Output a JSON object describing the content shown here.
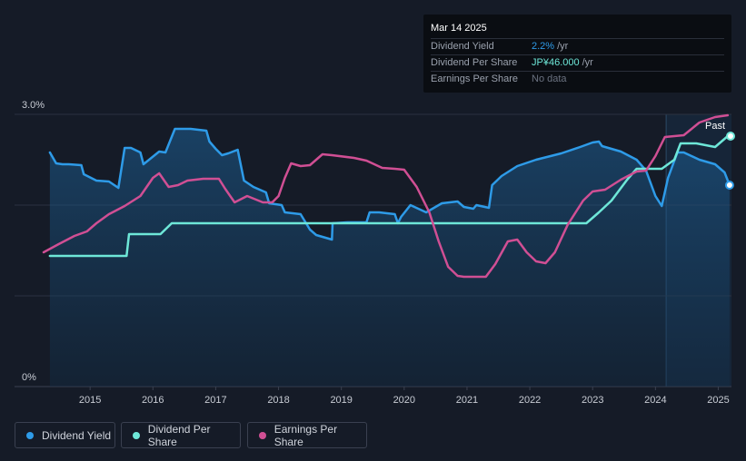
{
  "tooltip": {
    "date": "Mar 14 2025",
    "rows": [
      {
        "label": "Dividend Yield",
        "value": "2.2%",
        "unit": "/yr",
        "color": "#2e9be8"
      },
      {
        "label": "Dividend Per Share",
        "value": "JP¥46.000",
        "unit": "/yr",
        "color": "#6ee7d8"
      },
      {
        "label": "Earnings Per Share",
        "value": "No data",
        "unit": "",
        "color": "#6b7280"
      }
    ]
  },
  "past_label": "Past",
  "legend": [
    {
      "label": "Dividend Yield",
      "color": "#2e9be8"
    },
    {
      "label": "Dividend Per Share",
      "color": "#6ee7d8"
    },
    {
      "label": "Earnings Per Share",
      "color": "#d04f94"
    }
  ],
  "chart_data": {
    "type": "line",
    "y_tick_labels": [
      "3.0%",
      "0%"
    ],
    "x_tick_labels": [
      "2015",
      "2016",
      "2017",
      "2018",
      "2019",
      "2020",
      "2021",
      "2022",
      "2023",
      "2024",
      "2025"
    ],
    "xlim": [
      2014.26,
      2025.21
    ],
    "ylim": [
      0,
      3.0
    ],
    "past_start": 2024.17,
    "series": [
      {
        "name": "Dividend Yield",
        "color": "#2e9be8",
        "fill": true,
        "points": [
          [
            2014.36,
            2.58
          ],
          [
            2014.46,
            2.46
          ],
          [
            2014.56,
            2.45
          ],
          [
            2014.66,
            2.45
          ],
          [
            2014.86,
            2.44
          ],
          [
            2014.9,
            2.34
          ],
          [
            2015.1,
            2.27
          ],
          [
            2015.3,
            2.26
          ],
          [
            2015.45,
            2.19
          ],
          [
            2015.55,
            2.63
          ],
          [
            2015.65,
            2.63
          ],
          [
            2015.8,
            2.58
          ],
          [
            2015.85,
            2.45
          ],
          [
            2016.1,
            2.59
          ],
          [
            2016.2,
            2.58
          ],
          [
            2016.35,
            2.84
          ],
          [
            2016.6,
            2.84
          ],
          [
            2016.85,
            2.82
          ],
          [
            2016.9,
            2.7
          ],
          [
            2017.0,
            2.62
          ],
          [
            2017.1,
            2.55
          ],
          [
            2017.2,
            2.57
          ],
          [
            2017.35,
            2.61
          ],
          [
            2017.45,
            2.27
          ],
          [
            2017.6,
            2.2
          ],
          [
            2017.8,
            2.14
          ],
          [
            2017.85,
            2.02
          ],
          [
            2018.05,
            2.0
          ],
          [
            2018.1,
            1.92
          ],
          [
            2018.35,
            1.9
          ],
          [
            2018.5,
            1.73
          ],
          [
            2018.6,
            1.67
          ],
          [
            2018.85,
            1.62
          ],
          [
            2018.86,
            1.8
          ],
          [
            2019.1,
            1.81
          ],
          [
            2019.4,
            1.81
          ],
          [
            2019.45,
            1.92
          ],
          [
            2019.6,
            1.92
          ],
          [
            2019.85,
            1.9
          ],
          [
            2019.9,
            1.8
          ],
          [
            2019.95,
            1.87
          ],
          [
            2020.1,
            2.0
          ],
          [
            2020.35,
            1.92
          ],
          [
            2020.45,
            1.96
          ],
          [
            2020.6,
            2.02
          ],
          [
            2020.85,
            2.04
          ],
          [
            2020.95,
            1.98
          ],
          [
            2021.1,
            1.96
          ],
          [
            2021.15,
            2.0
          ],
          [
            2021.35,
            1.97
          ],
          [
            2021.4,
            2.22
          ],
          [
            2021.55,
            2.32
          ],
          [
            2021.8,
            2.43
          ],
          [
            2022.1,
            2.5
          ],
          [
            2022.5,
            2.57
          ],
          [
            2022.8,
            2.64
          ],
          [
            2023.0,
            2.69
          ],
          [
            2023.1,
            2.7
          ],
          [
            2023.15,
            2.65
          ],
          [
            2023.45,
            2.59
          ],
          [
            2023.7,
            2.5
          ],
          [
            2023.85,
            2.38
          ],
          [
            2024.0,
            2.1
          ],
          [
            2024.1,
            1.99
          ],
          [
            2024.2,
            2.3
          ],
          [
            2024.35,
            2.58
          ],
          [
            2024.45,
            2.58
          ],
          [
            2024.7,
            2.5
          ],
          [
            2024.95,
            2.45
          ],
          [
            2025.1,
            2.36
          ],
          [
            2025.18,
            2.22
          ]
        ]
      },
      {
        "name": "Dividend Per Share",
        "color": "#6ee7d8",
        "fill": false,
        "points": [
          [
            2014.36,
            1.44
          ],
          [
            2015.35,
            1.44
          ],
          [
            2015.58,
            1.44
          ],
          [
            2015.62,
            1.68
          ],
          [
            2016.12,
            1.68
          ],
          [
            2016.3,
            1.8
          ],
          [
            2016.4,
            1.8
          ],
          [
            2022.9,
            1.8
          ],
          [
            2023.1,
            1.92
          ],
          [
            2023.3,
            2.05
          ],
          [
            2023.55,
            2.28
          ],
          [
            2023.7,
            2.4
          ],
          [
            2023.85,
            2.4
          ],
          [
            2024.1,
            2.4
          ],
          [
            2024.3,
            2.5
          ],
          [
            2024.4,
            2.68
          ],
          [
            2024.65,
            2.68
          ],
          [
            2024.95,
            2.64
          ],
          [
            2025.15,
            2.76
          ],
          [
            2025.21,
            2.76
          ]
        ]
      },
      {
        "name": "Earnings Per Share",
        "color": "#d04f94",
        "fill": false,
        "points": [
          [
            2014.26,
            1.48
          ],
          [
            2014.5,
            1.57
          ],
          [
            2014.75,
            1.66
          ],
          [
            2014.95,
            1.71
          ],
          [
            2015.1,
            1.8
          ],
          [
            2015.3,
            1.9
          ],
          [
            2015.55,
            1.99
          ],
          [
            2015.8,
            2.1
          ],
          [
            2016.0,
            2.3
          ],
          [
            2016.1,
            2.35
          ],
          [
            2016.25,
            2.2
          ],
          [
            2016.4,
            2.22
          ],
          [
            2016.55,
            2.27
          ],
          [
            2016.8,
            2.29
          ],
          [
            2017.05,
            2.29
          ],
          [
            2017.15,
            2.18
          ],
          [
            2017.3,
            2.03
          ],
          [
            2017.5,
            2.1
          ],
          [
            2017.75,
            2.03
          ],
          [
            2017.9,
            2.03
          ],
          [
            2018.0,
            2.1
          ],
          [
            2018.1,
            2.3
          ],
          [
            2018.2,
            2.46
          ],
          [
            2018.35,
            2.43
          ],
          [
            2018.5,
            2.44
          ],
          [
            2018.7,
            2.56
          ],
          [
            2018.85,
            2.55
          ],
          [
            2019.2,
            2.52
          ],
          [
            2019.4,
            2.49
          ],
          [
            2019.65,
            2.41
          ],
          [
            2019.85,
            2.4
          ],
          [
            2020.0,
            2.39
          ],
          [
            2020.2,
            2.2
          ],
          [
            2020.4,
            1.92
          ],
          [
            2020.55,
            1.6
          ],
          [
            2020.7,
            1.32
          ],
          [
            2020.85,
            1.22
          ],
          [
            2020.95,
            1.21
          ],
          [
            2021.3,
            1.21
          ],
          [
            2021.45,
            1.35
          ],
          [
            2021.65,
            1.6
          ],
          [
            2021.8,
            1.62
          ],
          [
            2021.95,
            1.48
          ],
          [
            2022.1,
            1.38
          ],
          [
            2022.25,
            1.36
          ],
          [
            2022.4,
            1.48
          ],
          [
            2022.6,
            1.78
          ],
          [
            2022.85,
            2.05
          ],
          [
            2023.0,
            2.15
          ],
          [
            2023.2,
            2.17
          ],
          [
            2023.45,
            2.28
          ],
          [
            2023.7,
            2.37
          ],
          [
            2023.85,
            2.38
          ],
          [
            2024.0,
            2.54
          ],
          [
            2024.15,
            2.75
          ],
          [
            2024.45,
            2.77
          ],
          [
            2024.7,
            2.91
          ],
          [
            2024.95,
            2.97
          ],
          [
            2025.15,
            2.99
          ]
        ]
      }
    ]
  }
}
